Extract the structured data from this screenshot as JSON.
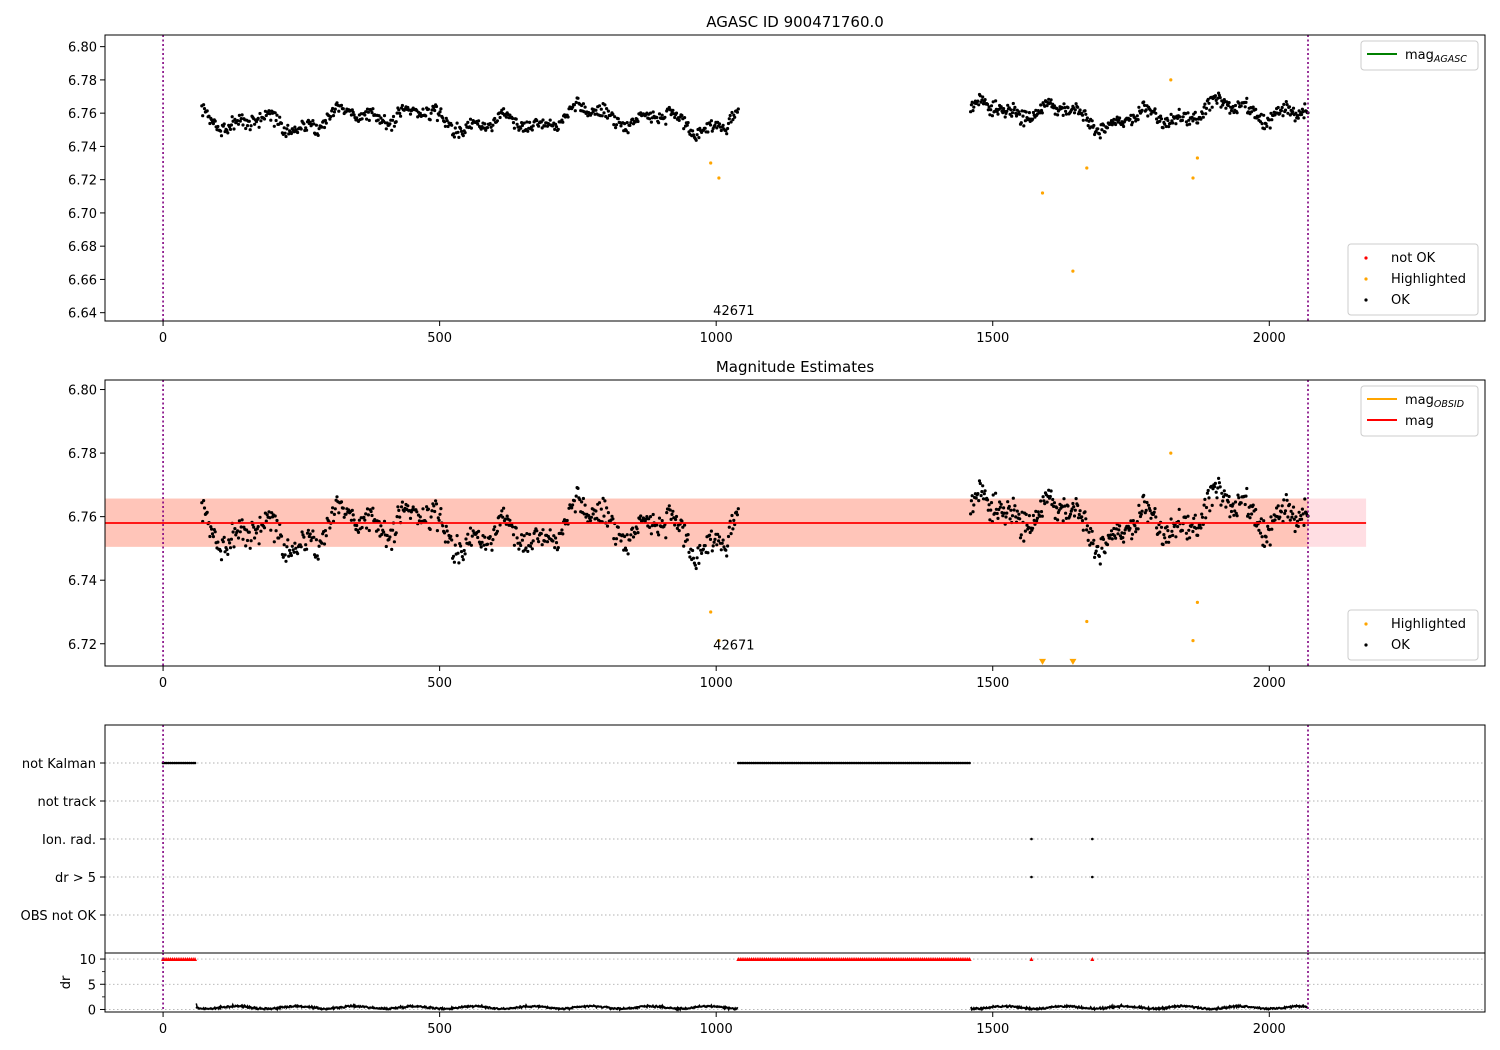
{
  "figure": {
    "title": "AGASC ID 900471760.0"
  },
  "chart_data": [
    {
      "id": "top",
      "type": "scatter",
      "title": "AGASC ID 900471760.0",
      "xlim": [
        -105,
        2390
      ],
      "ylim": [
        6.635,
        6.807
      ],
      "x_ticks": [
        0,
        500,
        1000,
        1500,
        2000
      ],
      "y_ticks": [
        6.64,
        6.66,
        6.68,
        6.7,
        6.72,
        6.74,
        6.76,
        6.78,
        6.8
      ],
      "y_tick_decimals": 2,
      "grid": false,
      "vlines": [
        0,
        2070
      ],
      "obsid_label": {
        "text": "42671",
        "x": 1000,
        "y": 6.641
      },
      "legend_upper": {
        "position": "top-right",
        "entries": [
          {
            "label": "mag",
            "sub": "AGASC",
            "color": "#008000"
          }
        ]
      },
      "legend_lower": {
        "position": "bottom-right",
        "entries": [
          {
            "label": "not OK",
            "color": "#ff0000"
          },
          {
            "label": "Highlighted",
            "color": "#ffa500"
          },
          {
            "label": "OK",
            "color": "#000000"
          }
        ]
      },
      "ok_segments": [
        {
          "x": [
            70,
            1040
          ],
          "mean": 6.7565,
          "amp": 0.0075,
          "noise": 0.004,
          "n": 600
        },
        {
          "x": [
            1460,
            2070
          ],
          "mean": 6.759,
          "amp": 0.008,
          "noise": 0.004,
          "n": 420
        }
      ],
      "highlighted_points": [
        [
          990,
          6.73
        ],
        [
          1005,
          6.721
        ],
        [
          1590,
          6.712
        ],
        [
          1645,
          6.665
        ],
        [
          1670,
          6.727
        ],
        [
          1822,
          6.78
        ],
        [
          1862,
          6.721
        ],
        [
          1870,
          6.733
        ]
      ]
    },
    {
      "id": "mid",
      "type": "scatter",
      "title": "Magnitude Estimates",
      "xlim": [
        -105,
        2390
      ],
      "ylim": [
        6.713,
        6.803
      ],
      "x_ticks": [
        0,
        500,
        1000,
        1500,
        2000
      ],
      "y_ticks": [
        6.72,
        6.74,
        6.76,
        6.78,
        6.8
      ],
      "y_tick_decimals": 2,
      "grid": false,
      "vlines": [
        0,
        2070
      ],
      "band": {
        "x": [
          -105,
          2175
        ],
        "y": [
          6.7505,
          6.7657
        ],
        "color": "#ffb6c1"
      },
      "band_inner": {
        "x": [
          -105,
          2070
        ],
        "y": [
          6.7505,
          6.7657
        ],
        "color": "#ffa07a"
      },
      "mag_line": {
        "y": 6.758,
        "color": "#ff0000"
      },
      "obsid_label": {
        "text": "42671",
        "x": 1000,
        "y": 6.7195
      },
      "legend_upper": {
        "position": "top-right",
        "entries": [
          {
            "label": "mag",
            "sub": "OBSID",
            "color": "#ffa500"
          },
          {
            "label": "mag",
            "sub": "",
            "color": "#ff0000"
          }
        ]
      },
      "legend_lower": {
        "position": "bottom-right",
        "entries": [
          {
            "label": "Highlighted",
            "color": "#ffa500"
          },
          {
            "label": "OK",
            "color": "#000000"
          }
        ]
      },
      "ok_segments": [
        {
          "x": [
            70,
            1040
          ],
          "mean": 6.7565,
          "amp": 0.0075,
          "noise": 0.004,
          "n": 600
        },
        {
          "x": [
            1460,
            2070
          ],
          "mean": 6.759,
          "amp": 0.008,
          "noise": 0.004,
          "n": 420
        }
      ],
      "highlighted_points": [
        [
          990,
          6.73
        ],
        [
          1005,
          6.721
        ],
        [
          1670,
          6.727
        ],
        [
          1822,
          6.78
        ],
        [
          1862,
          6.721
        ],
        [
          1870,
          6.733
        ]
      ],
      "offscale_markers": [
        [
          1590,
          6.714
        ],
        [
          1645,
          6.714
        ]
      ]
    },
    {
      "id": "flags",
      "type": "scatter",
      "xlim": [
        -105,
        2390
      ],
      "categories": [
        "not Kalman",
        "not track",
        "Ion. rad.",
        "dr > 5",
        "OBS not OK"
      ],
      "grid": "horizontal-dotted",
      "vlines": [
        0,
        2070
      ],
      "flag_points": {
        "not Kalman": [
          [
            0,
            60
          ],
          [
            1040,
            1460
          ]
        ],
        "Ion. rad.": [
          [
            1570,
            1570
          ],
          [
            1680,
            1680
          ]
        ],
        "dr > 5": [
          [
            1570,
            1570
          ],
          [
            1680,
            1680
          ]
        ]
      }
    },
    {
      "id": "dr",
      "type": "line",
      "xlim": [
        -105,
        2390
      ],
      "ylim": [
        -0.5,
        11.2
      ],
      "ylabel": "dr",
      "x_ticks": [
        0,
        500,
        1000,
        1500,
        2000
      ],
      "y_ticks": [
        0,
        5,
        10
      ],
      "y_minor_ticks": [
        2.5,
        7.5
      ],
      "grid": "horizontal-dotted",
      "vlines": [
        0,
        2070
      ],
      "capped_value": 10,
      "capped_ranges": [
        [
          0,
          60
        ],
        [
          1040,
          1460
        ]
      ],
      "capped_points": [
        1570,
        1680
      ],
      "dr_segments": [
        {
          "x": [
            60,
            1040
          ],
          "level": 0.4
        },
        {
          "x": [
            1460,
            2070
          ],
          "level": 0.4
        }
      ]
    }
  ]
}
